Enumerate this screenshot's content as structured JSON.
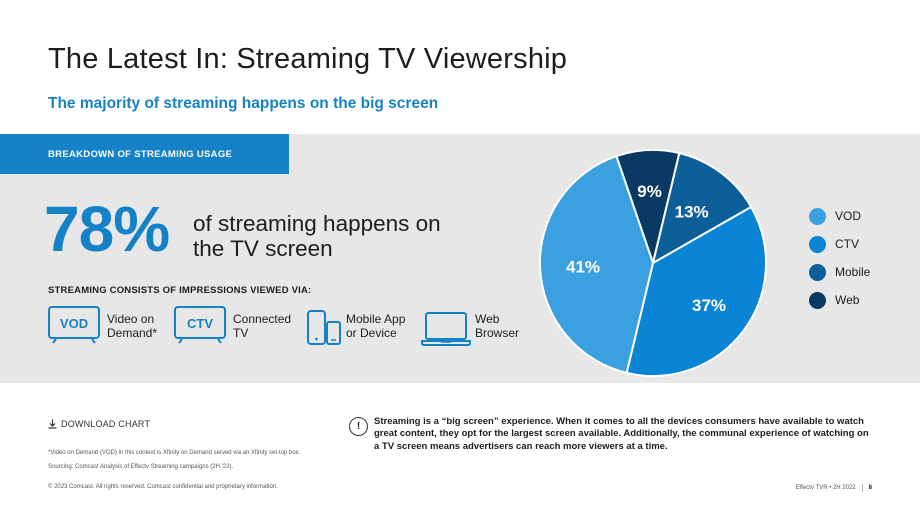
{
  "header": {
    "title": "The Latest In: Streaming TV Viewership",
    "subtitle": "The majority of streaming happens on the big screen"
  },
  "panel": {
    "tab_label": "BREAKDOWN OF STREAMING USAGE",
    "big_stat": "78%",
    "big_stat_desc": "of streaming happens on the TV screen",
    "consists_label": "STREAMING CONSISTS OF IMPRESSIONS VIEWED VIA:",
    "devices": [
      {
        "badge": "VOD",
        "label_1": "Video on",
        "label_2": "Demand*",
        "icon": "tv-vod-icon"
      },
      {
        "badge": "CTV",
        "label_1": "Connected",
        "label_2": "TV",
        "icon": "tv-ctv-icon"
      },
      {
        "badge": "",
        "label_1": "Mobile App",
        "label_2": "or Device",
        "icon": "mobile-device-icon"
      },
      {
        "badge": "",
        "label_1": "Web",
        "label_2": "Browser",
        "icon": "laptop-icon"
      }
    ]
  },
  "colors": {
    "accent": "#1582c8",
    "panel_bg": "#e7e7e7"
  },
  "chart_data": {
    "type": "pie",
    "title": "Breakdown of Streaming Usage",
    "categories": [
      "VOD",
      "CTV",
      "Mobile",
      "Web"
    ],
    "values": [
      41,
      37,
      13,
      9
    ],
    "labels": [
      "41%",
      "37%",
      "13%",
      "9%"
    ],
    "colors": [
      "#3aa0e0",
      "#0a84d4",
      "#0d5f99",
      "#0a3a63"
    ],
    "legend_position": "right"
  },
  "footer": {
    "download_label": "DOWNLOAD CHART",
    "footnote": "*Video on Demand (VOD) in this context is Xfinity on Demand served via an Xfinity set-top box.",
    "sourcing": "Sourcing: Comcast Analysis of Effectv Streaming campaigns (2H '22).",
    "copyright": "© 2023 Comcast. All rights reserved. Comcast confidential and proprietary information.",
    "report_name": "Effectv TVR • 2H 2022",
    "page_number": "8",
    "callout_icon": "!",
    "callout": "Streaming is a “big screen” experience. When it comes to all the devices consumers have available to watch great content, they opt for the largest screen available. Additionally, the communal experience of watching on a TV screen means advertisers can reach more viewers at a time."
  }
}
